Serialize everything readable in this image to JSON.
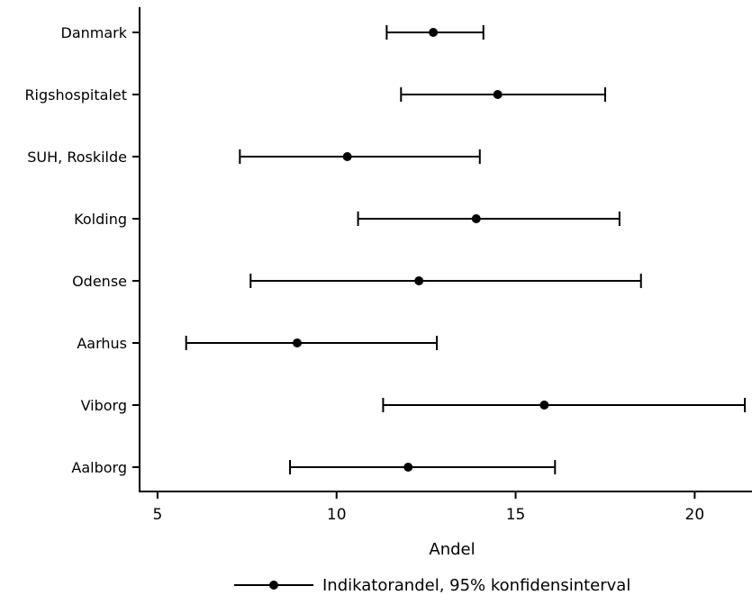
{
  "chart_data": {
    "type": "scatter",
    "orientation": "horizontal",
    "categories": [
      "Danmark",
      "Rigshospitalet",
      "SUH, Roskilde",
      "Kolding",
      "Odense",
      "Aarhus",
      "Viborg",
      "Aalborg"
    ],
    "series": [
      {
        "name": "Indikatorandel, 95% konfidensinterval",
        "values": [
          12.7,
          14.5,
          10.3,
          13.9,
          12.3,
          8.9,
          15.8,
          12.0
        ],
        "ci_low": [
          11.4,
          11.8,
          7.3,
          10.6,
          7.6,
          5.8,
          11.3,
          8.7
        ],
        "ci_high": [
          14.1,
          17.5,
          14.0,
          17.9,
          18.5,
          12.8,
          21.4,
          16.1
        ],
        "color": "#000000"
      }
    ],
    "xlabel": "Andel",
    "xlim": [
      4.5,
      21.6
    ],
    "xticks": [
      5,
      10,
      15,
      20
    ],
    "grid": false,
    "legend": "bottom"
  }
}
